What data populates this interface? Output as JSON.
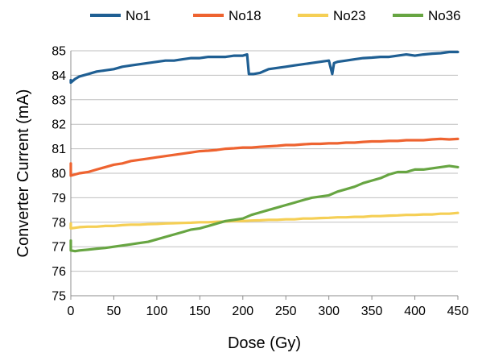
{
  "chart_data": {
    "type": "line",
    "title": "",
    "xlabel": "Dose (Gy)",
    "ylabel": "Converter Current (mA)",
    "xlim": [
      0,
      450
    ],
    "ylim": [
      75,
      85
    ],
    "xticks": [
      0,
      50,
      100,
      150,
      200,
      250,
      300,
      350,
      400,
      450
    ],
    "yticks": [
      75,
      76,
      77,
      78,
      79,
      80,
      81,
      82,
      83,
      84,
      85
    ],
    "grid": "horizontal",
    "legend_position": "top",
    "series": [
      {
        "name": "No1",
        "color": "#1f5f93",
        "x": [
          0,
          0,
          5,
          10,
          20,
          30,
          40,
          50,
          60,
          70,
          80,
          90,
          100,
          110,
          120,
          130,
          140,
          150,
          160,
          170,
          180,
          190,
          200,
          205,
          207,
          212,
          220,
          230,
          240,
          250,
          260,
          270,
          280,
          290,
          300,
          304,
          306,
          310,
          320,
          330,
          340,
          350,
          360,
          370,
          380,
          390,
          400,
          410,
          420,
          430,
          440,
          450
        ],
        "y": [
          83.8,
          83.7,
          83.85,
          83.95,
          84.05,
          84.15,
          84.2,
          84.25,
          84.35,
          84.4,
          84.45,
          84.5,
          84.55,
          84.6,
          84.6,
          84.65,
          84.7,
          84.7,
          84.75,
          84.75,
          84.75,
          84.8,
          84.8,
          84.85,
          84.05,
          84.05,
          84.1,
          84.25,
          84.3,
          84.35,
          84.4,
          84.45,
          84.5,
          84.55,
          84.6,
          84.05,
          84.5,
          84.55,
          84.6,
          84.65,
          84.7,
          84.72,
          84.75,
          84.75,
          84.8,
          84.85,
          84.8,
          84.85,
          84.88,
          84.9,
          84.95,
          84.95
        ]
      },
      {
        "name": "No18",
        "color": "#ee6330",
        "x": [
          0,
          0,
          10,
          20,
          30,
          40,
          50,
          60,
          70,
          80,
          90,
          100,
          110,
          120,
          130,
          140,
          150,
          160,
          170,
          180,
          190,
          200,
          210,
          220,
          230,
          240,
          250,
          260,
          270,
          280,
          290,
          300,
          310,
          320,
          330,
          340,
          350,
          360,
          370,
          380,
          390,
          400,
          410,
          420,
          430,
          440,
          450
        ],
        "y": [
          80.4,
          79.9,
          80.0,
          80.05,
          80.15,
          80.25,
          80.35,
          80.4,
          80.5,
          80.55,
          80.6,
          80.65,
          80.7,
          80.75,
          80.8,
          80.85,
          80.9,
          80.92,
          80.95,
          81.0,
          81.02,
          81.05,
          81.05,
          81.08,
          81.1,
          81.12,
          81.15,
          81.15,
          81.18,
          81.2,
          81.2,
          81.22,
          81.22,
          81.25,
          81.25,
          81.28,
          81.3,
          81.3,
          81.32,
          81.32,
          81.35,
          81.35,
          81.35,
          81.38,
          81.4,
          81.38,
          81.4
        ]
      },
      {
        "name": "No23",
        "color": "#f5cf55",
        "x": [
          0,
          0,
          10,
          20,
          30,
          40,
          50,
          60,
          70,
          80,
          90,
          100,
          110,
          120,
          130,
          140,
          150,
          160,
          170,
          180,
          190,
          200,
          210,
          220,
          230,
          240,
          250,
          260,
          270,
          280,
          290,
          300,
          310,
          320,
          330,
          340,
          350,
          360,
          370,
          380,
          390,
          400,
          410,
          420,
          430,
          440,
          450
        ],
        "y": [
          77.95,
          77.75,
          77.8,
          77.82,
          77.82,
          77.85,
          77.85,
          77.88,
          77.9,
          77.9,
          77.92,
          77.93,
          77.95,
          77.96,
          77.97,
          77.98,
          78.0,
          78.0,
          78.02,
          78.03,
          78.05,
          78.05,
          78.07,
          78.08,
          78.1,
          78.1,
          78.12,
          78.12,
          78.15,
          78.15,
          78.17,
          78.18,
          78.2,
          78.2,
          78.22,
          78.22,
          78.25,
          78.25,
          78.27,
          78.28,
          78.3,
          78.3,
          78.32,
          78.32,
          78.35,
          78.35,
          78.38
        ]
      },
      {
        "name": "No36",
        "color": "#67a542",
        "x": [
          0,
          0,
          5,
          10,
          20,
          30,
          40,
          50,
          60,
          70,
          80,
          90,
          100,
          110,
          120,
          130,
          140,
          150,
          160,
          170,
          180,
          190,
          200,
          210,
          220,
          230,
          240,
          250,
          260,
          270,
          280,
          290,
          300,
          310,
          320,
          330,
          340,
          350,
          360,
          370,
          380,
          390,
          400,
          410,
          420,
          430,
          440,
          450
        ],
        "y": [
          77.25,
          76.85,
          76.82,
          76.85,
          76.88,
          76.92,
          76.95,
          77.0,
          77.05,
          77.1,
          77.15,
          77.2,
          77.3,
          77.4,
          77.5,
          77.6,
          77.7,
          77.75,
          77.85,
          77.95,
          78.05,
          78.1,
          78.15,
          78.3,
          78.4,
          78.5,
          78.6,
          78.7,
          78.8,
          78.9,
          79.0,
          79.05,
          79.1,
          79.25,
          79.35,
          79.45,
          79.6,
          79.7,
          79.8,
          79.95,
          80.05,
          80.05,
          80.15,
          80.15,
          80.2,
          80.25,
          80.3,
          80.25
        ]
      }
    ]
  }
}
